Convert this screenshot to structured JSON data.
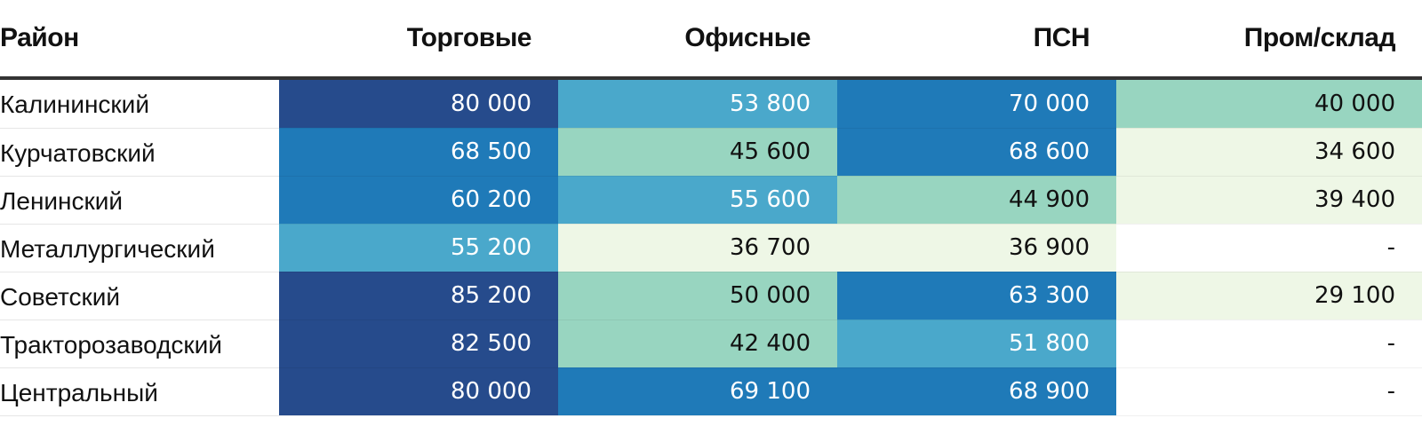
{
  "chart_data": {
    "type": "heatmap",
    "columns": [
      "Район",
      "Торговые",
      "Офисные",
      "ПСН",
      "Пром/склад"
    ],
    "rows": [
      {
        "label": "Калининский",
        "values": [
          80000,
          53800,
          70000,
          40000
        ],
        "text": [
          "80 000",
          "53 800",
          "70 000",
          "40 000"
        ]
      },
      {
        "label": "Курчатовский",
        "values": [
          68500,
          45600,
          68600,
          34600
        ],
        "text": [
          "68 500",
          "45 600",
          "68 600",
          "34 600"
        ]
      },
      {
        "label": "Ленинский",
        "values": [
          60200,
          55600,
          44900,
          39400
        ],
        "text": [
          "60 200",
          "55 600",
          "44 900",
          "39 400"
        ]
      },
      {
        "label": "Металлургический",
        "values": [
          55200,
          36700,
          36900,
          null
        ],
        "text": [
          "55 200",
          "36 700",
          "36 900",
          "-"
        ]
      },
      {
        "label": "Советский",
        "values": [
          85200,
          50000,
          63300,
          29100
        ],
        "text": [
          "85 200",
          "50 000",
          "63 300",
          "29 100"
        ]
      },
      {
        "label": "Тракторозаводский",
        "values": [
          82500,
          42400,
          51800,
          null
        ],
        "text": [
          "82 500",
          "42 400",
          "51 800",
          "-"
        ]
      },
      {
        "label": "Центральный",
        "values": [
          80000,
          69100,
          68900,
          null
        ],
        "text": [
          "80 000",
          "69 100",
          "68 900",
          "-"
        ]
      }
    ],
    "color_scale": {
      "bins": [
        {
          "min": 75000,
          "color": "#264b8c",
          "text_color": "#ffffff"
        },
        {
          "min": 60000,
          "color": "#1f7ab8",
          "text_color": "#ffffff"
        },
        {
          "min": 51000,
          "color": "#4aa8cb",
          "text_color": "#ffffff"
        },
        {
          "min": 40000,
          "color": "#98d5c0",
          "text_color": "#111111"
        },
        {
          "min": 0,
          "color": "#eef7e6",
          "text_color": "#111111"
        }
      ],
      "empty_color": "#ffffff"
    }
  }
}
